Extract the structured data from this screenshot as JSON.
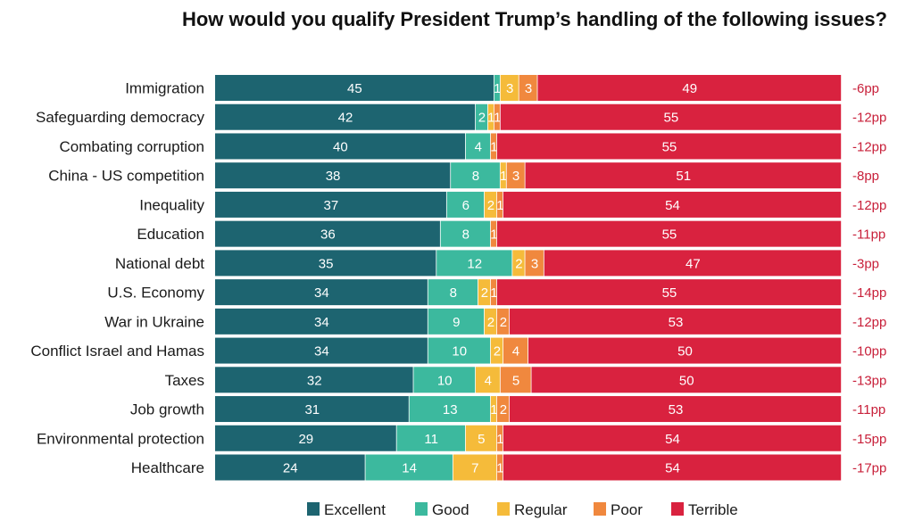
{
  "chart_data": {
    "type": "bar",
    "orientation": "horizontal",
    "stacked": true,
    "normalized": true,
    "title": "How would you qualify President Trump’s handling of the following issues?",
    "categories": [
      "Immigration",
      "Safeguarding democracy",
      "Combating corruption",
      "China - US competition",
      "Inequality",
      "Education",
      "National debt",
      "U.S. Economy",
      "War in Ukraine",
      "Conflict Israel and Hamas",
      "Taxes",
      "Job growth",
      "Environmental protection",
      "Healthcare"
    ],
    "series": [
      {
        "name": "Excellent",
        "color": "#1d6470",
        "values": [
          45,
          42,
          40,
          38,
          37,
          36,
          35,
          34,
          34,
          34,
          32,
          31,
          29,
          24
        ]
      },
      {
        "name": "Good",
        "color": "#3cb99e",
        "values": [
          1,
          2,
          4,
          8,
          6,
          8,
          12,
          8,
          9,
          10,
          10,
          13,
          11,
          14
        ]
      },
      {
        "name": "Regular",
        "color": "#f5bb3a",
        "values": [
          3,
          1,
          0,
          1,
          2,
          0,
          2,
          2,
          2,
          2,
          4,
          1,
          5,
          7
        ]
      },
      {
        "name": "Poor",
        "color": "#f0883e",
        "values": [
          3,
          1,
          1,
          3,
          1,
          1,
          3,
          1,
          2,
          4,
          5,
          2,
          1,
          1
        ]
      },
      {
        "name": "Terrible",
        "color": "#d9223f",
        "values": [
          49,
          55,
          55,
          51,
          54,
          55,
          47,
          55,
          53,
          50,
          50,
          53,
          54,
          54
        ]
      }
    ],
    "net_labels": [
      "-6pp",
      "-12pp",
      "-12pp",
      "-8pp",
      "-12pp",
      "-11pp",
      "-3pp",
      "-14pp",
      "-12pp",
      "-10pp",
      "-13pp",
      "-11pp",
      "-15pp",
      "-17pp"
    ],
    "legend_position": "bottom",
    "grid": false
  }
}
